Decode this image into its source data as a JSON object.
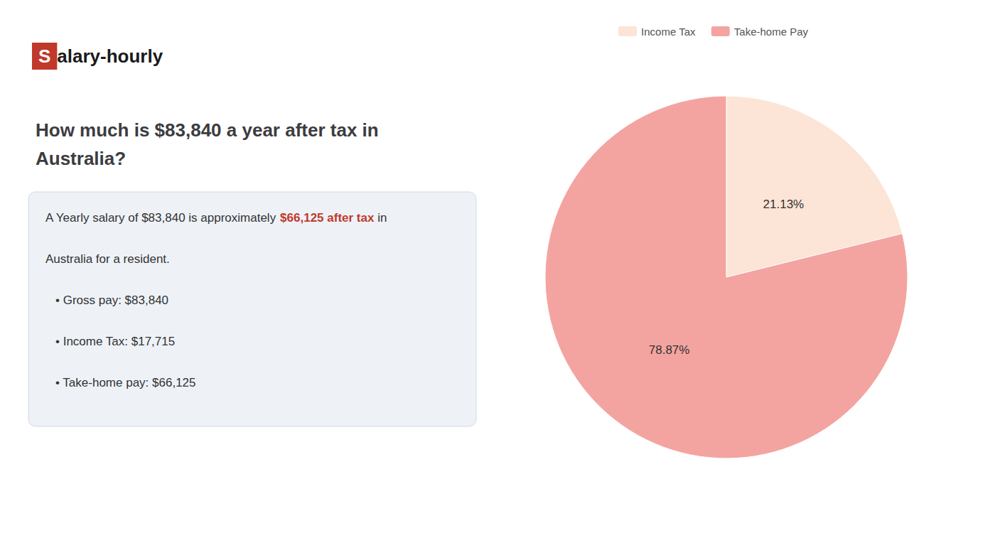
{
  "chart_data": {
    "type": "pie",
    "title": "How much is $83,840 a year after tax in\nAustralia?",
    "categories": [
      "Income Tax",
      "Take-home Pay"
    ],
    "values": [
      21.13,
      78.87
    ],
    "value_labels": [
      "21.13%",
      "78.87%"
    ],
    "colors": [
      "#fce4d6",
      "#f4a4a0"
    ],
    "data_labels": true,
    "legend": "top",
    "annotations": [
      [
        {
          "text": "S",
          "color": "#ffffff",
          "background": "#c0392b",
          "bold": true
        },
        {
          "text": "alary-hourly",
          "color": "#1a1a1a",
          "bold": true
        }
      ],
      [
        {
          "text": "A Yearly salary of $83,840 is approximately "
        },
        {
          "text": "$66,125 after tax",
          "color": "#c0392b",
          "bold": true
        },
        {
          "text": " in"
        }
      ],
      [
        {
          "text": "Australia for a resident."
        }
      ],
      [
        {
          "text": "• Gross pay: $83,840"
        }
      ],
      [
        {
          "text": "• Income Tax: $17,715"
        }
      ],
      [
        {
          "text": "• Take-home pay: $66,125"
        }
      ]
    ]
  }
}
